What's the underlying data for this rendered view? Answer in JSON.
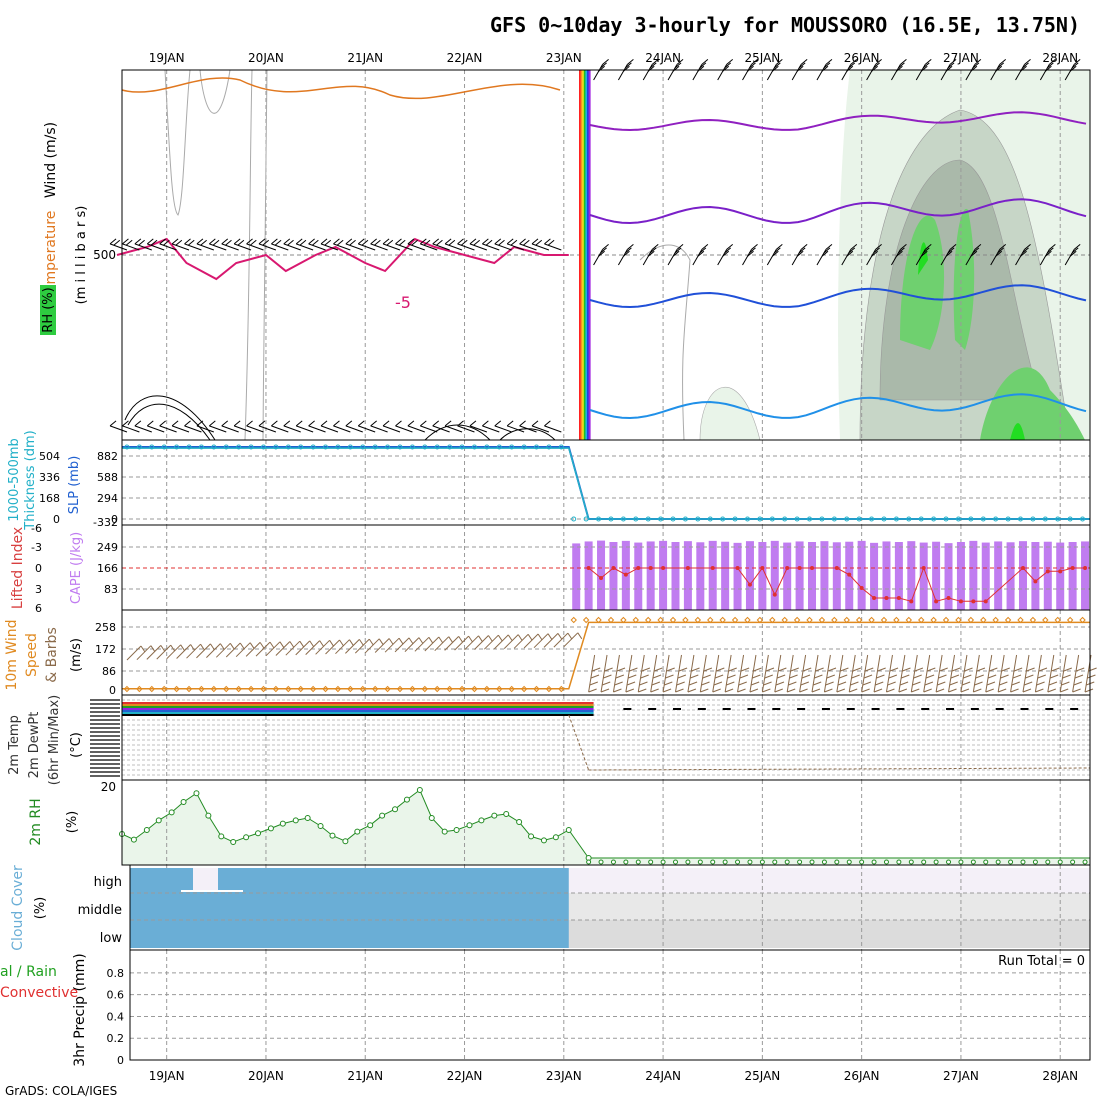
{
  "title": "GFS 0~10day 3-hourly for MOUSSORO (16.5E, 13.75N)",
  "credit": "GrADS: COLA/IGES",
  "colors": {
    "grid": "#9a9a9a",
    "rh_light": "#e9f4e9",
    "rh_mid": "#c7d6c7",
    "rh_dark": "#aab9aa",
    "rh_green": "#6fd06f",
    "rh_bright": "#22dd22",
    "cloud_blue": "#6aaed6",
    "cloud_high": "#f4f0f8",
    "cloud_mid": "#e8e8e8",
    "cloud_low": "#dcdcdc",
    "cape_bar": "#c07cf0",
    "lifted_red": "#e03030",
    "thickness": "#22b0c8",
    "slp": "#2060d0",
    "wind_speed": "#e08a20",
    "barb": "#8a6a4a",
    "rh2m_line": "#228b22",
    "rh2m_fill": "#eaf5ea"
  },
  "x_axis": {
    "date_labels": [
      "19JAN",
      "20JAN",
      "21JAN",
      "22JAN",
      "23JAN",
      "24JAN",
      "25JAN",
      "26JAN",
      "27JAN",
      "28JAN"
    ]
  },
  "panels": {
    "upper": {
      "labels": {
        "rh": "RH (%)",
        "temperature": "Temperature (°C)",
        "wind": "Wind (m/s)",
        "units": "(m i l l i b a r s)"
      },
      "level_tick": "500",
      "contour_label": "-5"
    },
    "slp": {
      "labels": {
        "thickness_a": "1000-500mb",
        "thickness_b": "Thickness (dm)",
        "slp": "SLP (mb)"
      },
      "left_ticks": [
        "504",
        "336",
        "168",
        "0"
      ],
      "right_ticks": [
        "882",
        "588",
        "294",
        "0",
        "-332"
      ]
    },
    "cape": {
      "labels": {
        "lifted": "Lifted Index",
        "cape": "CAPE (J/kg)"
      },
      "left_ticks": [
        "-6",
        "-3",
        "0",
        "3",
        "6"
      ],
      "right_ticks": [
        "249",
        "166",
        "83"
      ]
    },
    "wind10m": {
      "labels": {
        "a": "10m Wind",
        "b": "Speed",
        "c": "& Barbs",
        "units": "(m/s)"
      },
      "ticks": [
        "258",
        "172",
        "86",
        "0"
      ]
    },
    "temp2m": {
      "labels": {
        "a": "2m Temp",
        "b": "2m DewPt",
        "c": "(6hr Min/Max)",
        "units": "(°C)"
      },
      "bottom_tick": "20"
    },
    "rh2m": {
      "labels": {
        "a": "2m RH",
        "units": "(%)"
      }
    },
    "cloud": {
      "labels": {
        "a": "Cloud Cover",
        "units": "(%)"
      },
      "layers": [
        "high",
        "middle",
        "low"
      ]
    },
    "precip": {
      "labels": {
        "a": "3hr Precip (mm)",
        "b": "Total / Rain",
        "c": "Convective"
      },
      "ticks": [
        "0",
        "0.2",
        "0.4",
        "0.6",
        "0.8"
      ],
      "run_total": "Run Total = 0"
    }
  },
  "chart_data": [
    {
      "type": "line",
      "name": "upper_air_cross_section",
      "x_unit": "day",
      "xlim": [
        18.55,
        28.3
      ],
      "temperature_contour_500": {
        "x": [
          18.5,
          18.8,
          19.0,
          19.2,
          19.5,
          19.7,
          20.0,
          20.2,
          20.5,
          20.7,
          21.0,
          21.2,
          21.5,
          21.7,
          22.0,
          22.3,
          22.5,
          22.8,
          23.05
        ],
        "y": [
          -5,
          -4,
          -3,
          -6,
          -8,
          -6,
          -5,
          -7,
          -5,
          -4,
          -6,
          -7,
          -3,
          -4,
          -5,
          -6,
          -4,
          -5,
          -5
        ]
      },
      "level_ticks_mb": [
        500
      ]
    },
    {
      "type": "line",
      "name": "slp_thickness",
      "series": [
        {
          "name": "SLP (mb)",
          "x": [
            18.55,
            23.05,
            23.25,
            28.3
          ],
          "y": [
            882,
            882,
            0,
            0
          ]
        },
        {
          "name": "Thickness (dm)",
          "x": [
            18.55,
            23.05,
            23.25,
            28.3
          ],
          "y": [
            560,
            560,
            0,
            0
          ]
        }
      ]
    },
    {
      "type": "bar",
      "name": "cape_lifted_index",
      "cape_x": [
        23.125,
        23.25,
        23.375,
        23.5,
        23.625,
        23.75,
        23.875,
        24.0,
        24.125,
        24.25,
        24.375,
        24.5,
        24.625,
        24.75,
        24.875,
        25.0,
        25.125,
        25.25,
        25.375,
        25.5,
        25.625,
        25.75,
        25.875,
        26.0,
        26.125,
        26.25,
        26.375,
        26.5,
        26.625,
        26.75,
        26.875,
        27.0,
        27.125,
        27.25,
        27.375,
        27.5,
        27.625,
        27.75,
        27.875,
        28.0,
        28.125,
        28.25
      ],
      "cape_values": [
        235,
        242,
        245,
        240,
        244,
        238,
        242,
        244,
        240,
        243,
        239,
        244,
        241,
        237,
        243,
        240,
        244,
        238,
        242,
        240,
        243,
        239,
        241,
        244,
        237,
        242,
        240,
        243,
        238,
        241,
        236,
        240,
        244,
        238,
        242,
        239,
        243,
        240,
        241,
        238,
        240,
        242
      ],
      "lifted_index": {
        "x": [
          23.25,
          23.375,
          23.5,
          23.625,
          23.75,
          23.875,
          24.0,
          24.25,
          24.5,
          24.75,
          24.875,
          25.0,
          25.125,
          25.25,
          25.375,
          25.5,
          25.75,
          25.875,
          26.0,
          26.125,
          26.25,
          26.375,
          26.5,
          26.625,
          26.75,
          26.875,
          27.0,
          27.125,
          27.25,
          27.625,
          27.75,
          27.875,
          28.0,
          28.125,
          28.25
        ],
        "y": [
          0,
          1.5,
          0,
          1,
          0,
          0,
          0,
          0,
          0,
          0,
          2.5,
          0,
          4,
          0,
          0,
          0,
          0,
          1,
          3,
          4.5,
          4.5,
          4.5,
          5,
          0,
          5,
          4.5,
          5,
          5,
          5,
          0,
          2,
          0.5,
          0.5,
          0,
          0
        ]
      },
      "cape_ylim": [
        0,
        300
      ],
      "lifted_ylim": [
        6,
        -6
      ]
    },
    {
      "type": "line",
      "name": "wind10m_speed",
      "x": [
        18.55,
        23.05,
        23.25,
        28.3
      ],
      "y": [
        5,
        5,
        260,
        260
      ],
      "ylim": [
        0,
        300
      ]
    },
    {
      "type": "line",
      "name": "rh_2m",
      "x": [
        18.55,
        18.67,
        18.8,
        18.92,
        19.05,
        19.17,
        19.3,
        19.42,
        19.55,
        19.67,
        19.8,
        19.92,
        20.05,
        20.17,
        20.3,
        20.42,
        20.55,
        20.67,
        20.8,
        20.92,
        21.05,
        21.17,
        21.3,
        21.42,
        21.55,
        21.67,
        21.8,
        21.92,
        22.05,
        22.17,
        22.3,
        22.42,
        22.55,
        22.67,
        22.8,
        22.92,
        23.05,
        23.25,
        28.3
      ],
      "y": [
        35,
        28,
        40,
        52,
        62,
        75,
        86,
        58,
        32,
        25,
        31,
        36,
        42,
        48,
        52,
        55,
        45,
        33,
        26,
        38,
        46,
        58,
        66,
        78,
        90,
        55,
        38,
        40,
        46,
        52,
        58,
        60,
        50,
        32,
        27,
        31,
        40,
        5,
        5
      ],
      "ylim": [
        0,
        100
      ]
    },
    {
      "type": "area",
      "name": "cloud_cover",
      "layers": [
        "high",
        "middle",
        "low"
      ],
      "x": [
        18.55,
        23.05
      ],
      "values": [
        100,
        100
      ]
    },
    {
      "type": "line",
      "name": "precip_3hr",
      "x": [
        18.55,
        28.3
      ],
      "y": [
        0,
        0
      ],
      "ylim": [
        0,
        0.9
      ]
    }
  ]
}
